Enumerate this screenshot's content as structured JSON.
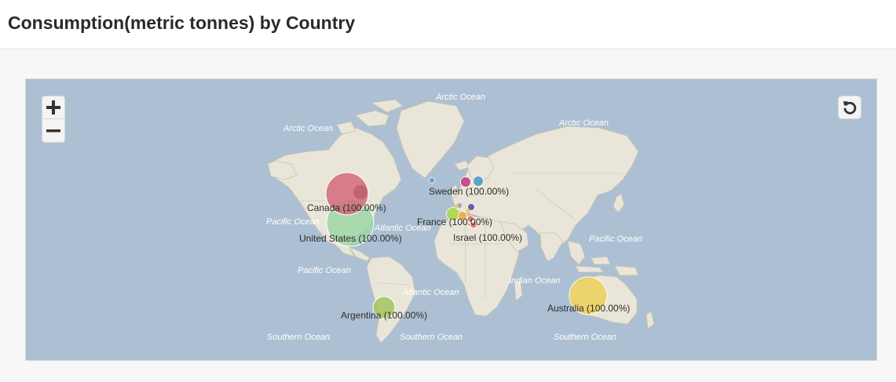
{
  "header": {
    "title": "Consumption(metric tonnes) by Country"
  },
  "map": {
    "controls": {
      "zoom_in_icon": "plus-icon",
      "zoom_out_icon": "minus-icon",
      "reset_icon": "rotate-ccw-icon"
    },
    "ocean_labels": {
      "arctic_top": "Arctic Ocean",
      "arctic_left": "Arctic Ocean",
      "arctic_right": "Arctic Ocean",
      "pacific_nw": "Pacific Ocean",
      "pacific_sw": "Pacific Ocean",
      "pacific_east": "Pacific Ocean",
      "atlantic_north": "Atlantic Ocean",
      "atlantic_south": "Atlantic Ocean",
      "indian": "Indian Ocean",
      "southern_left": "Southern Ocean",
      "southern_mid": "Southern Ocean",
      "southern_right": "Southern Ocean"
    },
    "colors": {
      "ocean": "#adc0d3",
      "land": "#e9e6d9",
      "border": "#c7c2b2",
      "canada": "#d36a78",
      "united_states": "#9fd6a6",
      "argentina": "#a6c765",
      "australia": "#ecd060",
      "sweden": "#4a9fc2",
      "france": "#b3d84c"
    },
    "country_labels": {
      "canada": "Canada (100.00%)",
      "united_states": "United States (100.00%)",
      "argentina": "Argentina (100.00%)",
      "australia": "Australia (100.00%)",
      "sweden": "Sweden (100.00%)",
      "france": "France (100.00%)",
      "israel": "Israel (100.00%)"
    }
  }
}
